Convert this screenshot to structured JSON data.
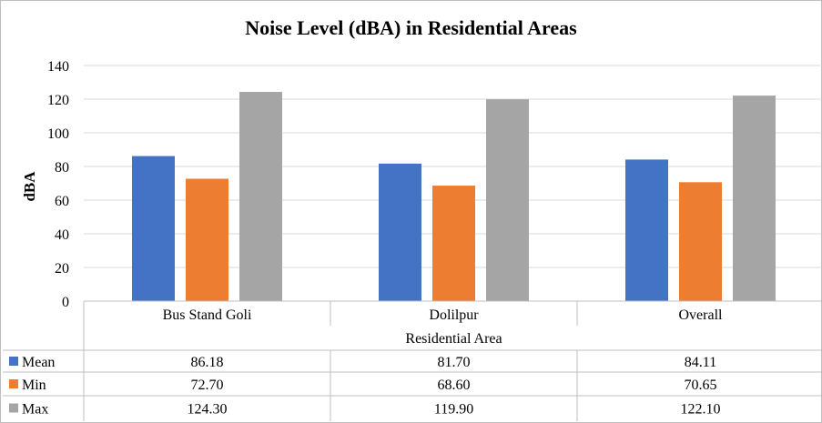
{
  "chart_data": {
    "type": "bar",
    "title": "Noise Level (dBA) in Residential Areas",
    "ylabel": "dBA",
    "xlabel": "Residential Area",
    "ylim": [
      0,
      140
    ],
    "yticks": [
      0,
      20,
      40,
      60,
      80,
      100,
      120,
      140
    ],
    "grid": true,
    "legend": "data-table",
    "categories": [
      "Bus Stand Goli",
      "Dolilpur",
      "Overall"
    ],
    "series": [
      {
        "name": "Mean",
        "color": "#4472c4",
        "values": [
          86.18,
          81.7,
          84.11
        ],
        "labels": [
          "86.18",
          "81.70",
          "84.11"
        ]
      },
      {
        "name": "Min",
        "color": "#ed7d31",
        "values": [
          72.7,
          68.6,
          70.65
        ],
        "labels": [
          "72.70",
          "68.60",
          "70.65"
        ]
      },
      {
        "name": "Max",
        "color": "#a5a5a5",
        "values": [
          124.3,
          119.9,
          122.1
        ],
        "labels": [
          "124.30",
          "119.90",
          "122.10"
        ]
      }
    ]
  }
}
